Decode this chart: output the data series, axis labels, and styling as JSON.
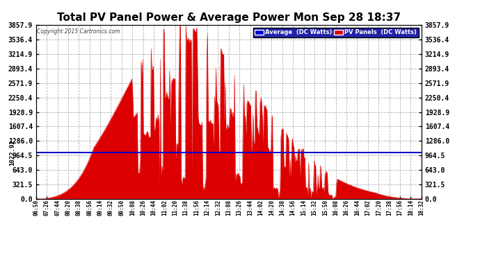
{
  "title": "Total PV Panel Power & Average Power Mon Sep 28 18:37",
  "copyright": "Copyright 2015 Cartronics.com",
  "legend_avg_label": "Average  (DC Watts)",
  "legend_pv_label": "PV Panels  (DC Watts)",
  "avg_value": 1022.92,
  "ymax": 3857.9,
  "ymin": 0.0,
  "yticks": [
    0.0,
    321.5,
    643.0,
    964.5,
    1286.0,
    1607.4,
    1928.9,
    2250.4,
    2571.9,
    2893.4,
    3214.9,
    3536.4,
    3857.9
  ],
  "background_color": "#ffffff",
  "plot_bg_color": "#ffffff",
  "grid_color": "#b0b0b0",
  "fill_color": "#dd0000",
  "avg_line_color": "#0000cc",
  "title_color": "#000000",
  "xtick_labels": [
    "06:50",
    "07:26",
    "07:44",
    "08:20",
    "08:38",
    "08:56",
    "09:14",
    "09:32",
    "09:50",
    "10:08",
    "10:26",
    "10:44",
    "11:02",
    "11:20",
    "11:38",
    "11:56",
    "12:14",
    "12:32",
    "13:08",
    "13:26",
    "13:44",
    "14:02",
    "14:20",
    "14:38",
    "14:56",
    "15:14",
    "15:32",
    "15:50",
    "16:08",
    "16:26",
    "16:44",
    "17:02",
    "17:20",
    "17:38",
    "17:56",
    "18:14",
    "18:32"
  ],
  "n_points": 500
}
